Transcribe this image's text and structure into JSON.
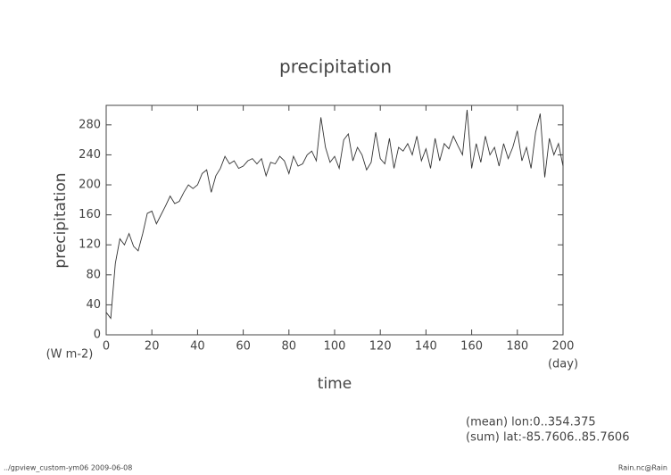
{
  "chart_data": {
    "type": "line",
    "title": "precipitation",
    "x_label": "time",
    "y_label": "precipitation",
    "y_units": "(W m-2)",
    "x_units": "(day)",
    "annotations": [
      "(mean) lon:0..354.375",
      "(sum) lat:-85.7606..85.7606"
    ],
    "x": [
      0,
      2,
      4,
      6,
      8,
      10,
      12,
      14,
      16,
      18,
      20,
      22,
      24,
      26,
      28,
      30,
      32,
      34,
      36,
      38,
      40,
      42,
      44,
      46,
      48,
      50,
      52,
      54,
      56,
      58,
      60,
      62,
      64,
      66,
      68,
      70,
      72,
      74,
      76,
      78,
      80,
      82,
      84,
      86,
      88,
      90,
      92,
      94,
      96,
      98,
      100,
      102,
      104,
      106,
      108,
      110,
      112,
      114,
      116,
      118,
      120,
      122,
      124,
      126,
      128,
      130,
      132,
      134,
      136,
      138,
      140,
      142,
      144,
      146,
      148,
      150,
      152,
      154,
      156,
      158,
      160,
      162,
      164,
      166,
      168,
      170,
      172,
      174,
      176,
      178,
      180,
      182,
      184,
      186,
      188,
      190,
      192,
      194,
      196,
      198,
      200
    ],
    "values": [
      30,
      22,
      95,
      128,
      120,
      135,
      118,
      112,
      135,
      162,
      165,
      148,
      160,
      172,
      185,
      175,
      178,
      190,
      200,
      195,
      200,
      215,
      220,
      190,
      212,
      222,
      238,
      228,
      232,
      222,
      225,
      232,
      235,
      228,
      235,
      212,
      230,
      228,
      238,
      232,
      215,
      238,
      225,
      228,
      240,
      245,
      232,
      290,
      250,
      230,
      238,
      222,
      260,
      268,
      232,
      250,
      240,
      220,
      230,
      270,
      235,
      228,
      262,
      222,
      250,
      245,
      255,
      240,
      265,
      232,
      248,
      222,
      262,
      232,
      255,
      248,
      265,
      252,
      240,
      300,
      222,
      255,
      230,
      265,
      240,
      250,
      225,
      255,
      235,
      250,
      272,
      232,
      250,
      222,
      270,
      295,
      210,
      262,
      240,
      255,
      225
    ],
    "color": "#333333",
    "xlim": [
      0,
      200
    ],
    "xticks": [
      0,
      20,
      40,
      60,
      80,
      100,
      120,
      140,
      160,
      180,
      200
    ],
    "ylim": [
      0,
      306
    ],
    "yticks": [
      0,
      40,
      80,
      120,
      160,
      200,
      240,
      280
    ],
    "grid": false
  },
  "footer": {
    "left": "../gpview_custom-ym06  2009-06-08",
    "right": "Rain.nc@Rain"
  }
}
